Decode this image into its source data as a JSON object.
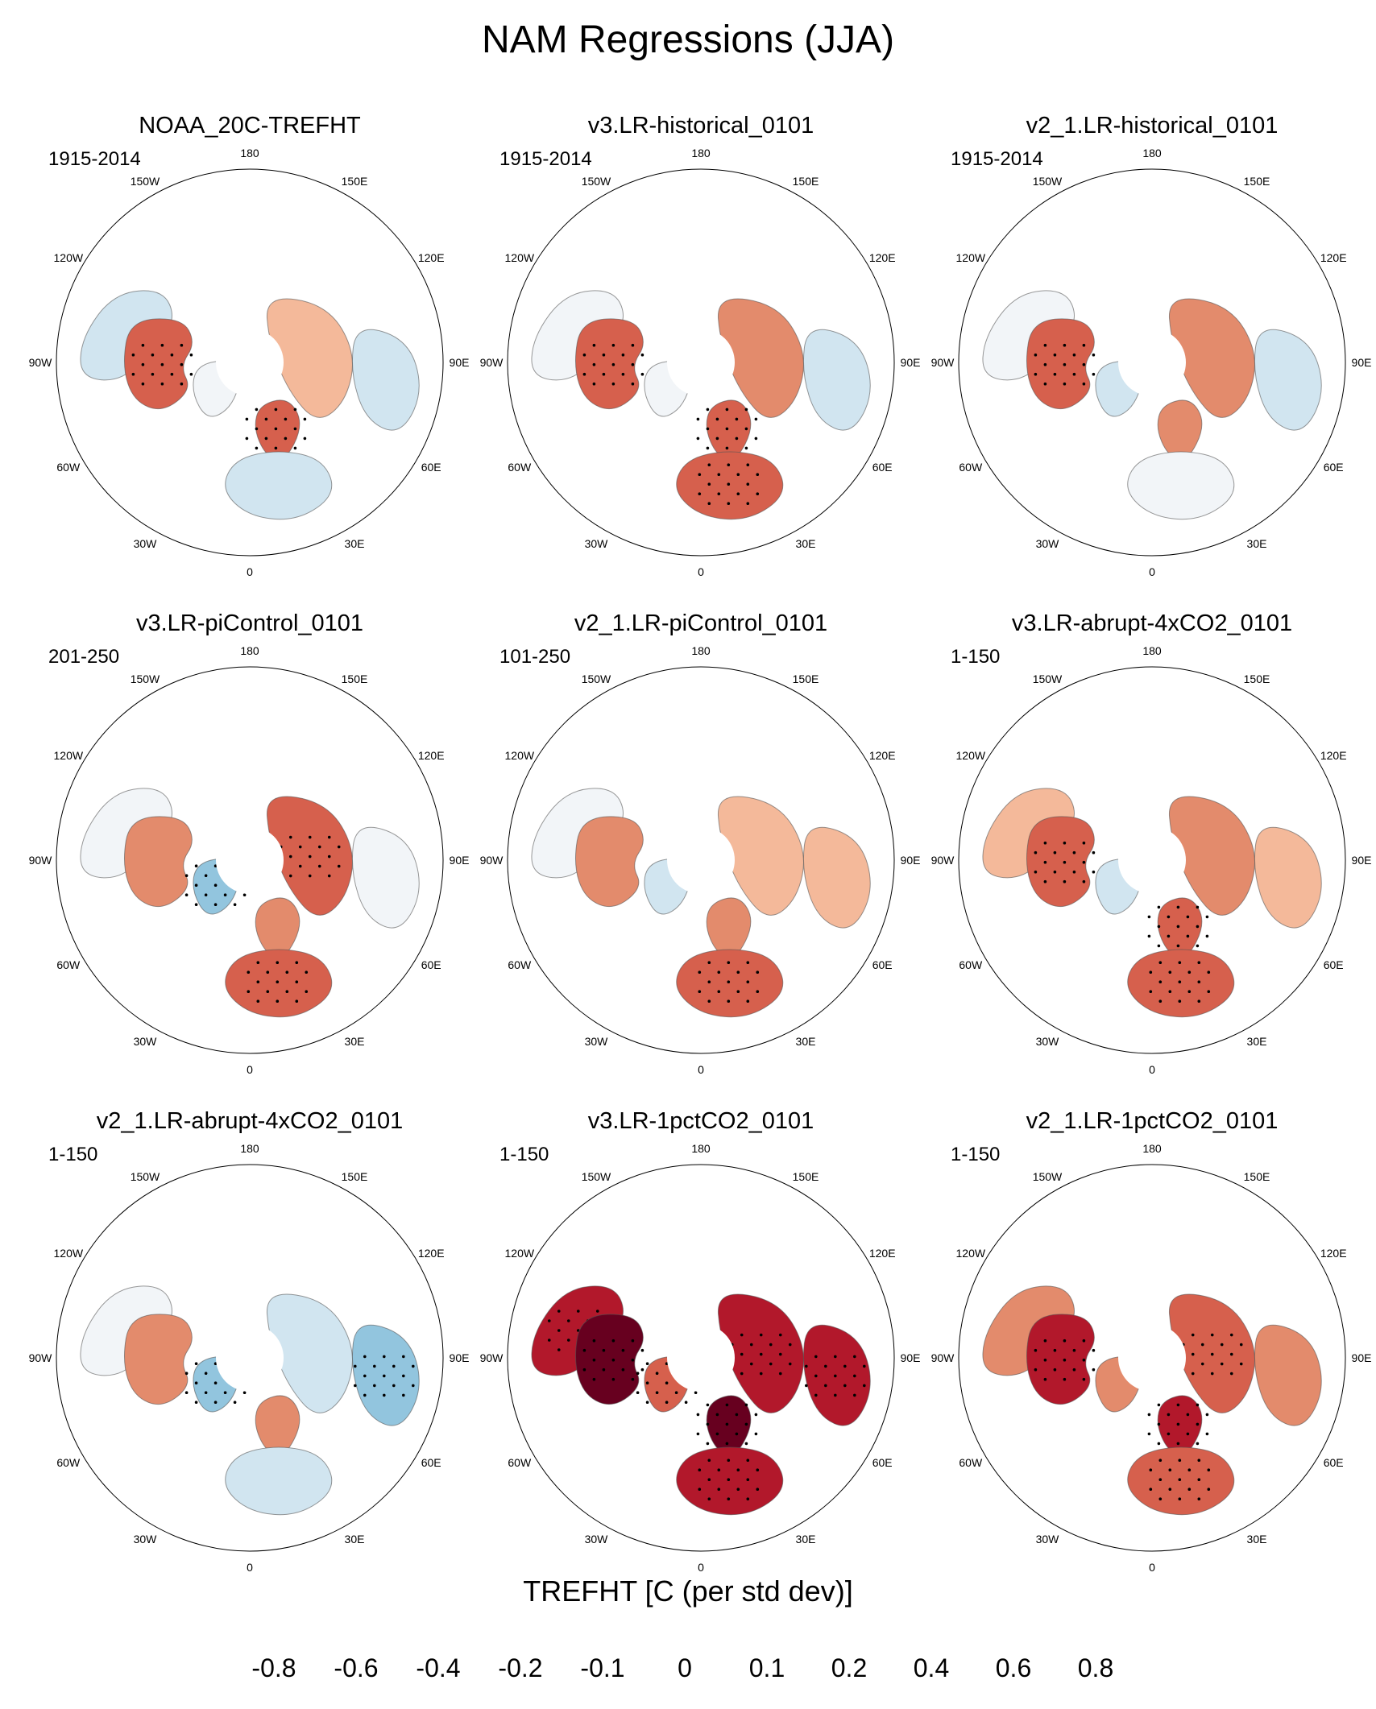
{
  "title": "NAM Regressions (JJA)",
  "colorbar": {
    "label": "TREFHT [C (per std dev)]",
    "ticks": [
      "-0.8",
      "-0.6",
      "-0.4",
      "-0.2",
      "-0.1",
      "0",
      "0.1",
      "0.2",
      "0.4",
      "0.6",
      "0.8"
    ],
    "colors": [
      "#053061",
      "#2166ac",
      "#4393c3",
      "#92c5de",
      "#d1e5f0",
      "#f2f5f8",
      "#fde0d4",
      "#f4b99a",
      "#e38b6c",
      "#d6604d",
      "#b2182b",
      "#67001f"
    ]
  },
  "longitude_labels": [
    "180",
    "150E",
    "120E",
    "90E",
    "60E",
    "30E",
    "0",
    "30W",
    "60W",
    "90W",
    "120W",
    "150W"
  ],
  "chart_data": {
    "type": "heatmap",
    "projection": "north polar stereographic",
    "variable": "TREFHT",
    "units": "C (per std dev)",
    "season": "JJA",
    "levels": [
      -0.8,
      -0.6,
      -0.4,
      -0.2,
      -0.1,
      0,
      0.1,
      0.2,
      0.4,
      0.6,
      0.8
    ],
    "panels": [
      {
        "name": "NOAA_20C-TREFHT",
        "period": "1915-2014",
        "regions": {
          "alaska": -0.2,
          "canada": 0.4,
          "greenland": -0.1,
          "scandinavia": 0.4,
          "europe": -0.2,
          "siberia": 0.1,
          "east_asia": -0.2
        }
      },
      {
        "name": "v3.LR-historical_0101",
        "period": "1915-2014",
        "regions": {
          "alaska": -0.1,
          "canada": 0.4,
          "greenland": -0.1,
          "scandinavia": 0.4,
          "europe": 0.4,
          "siberia": 0.2,
          "east_asia": -0.2
        }
      },
      {
        "name": "v2_1.LR-historical_0101",
        "period": "1915-2014",
        "regions": {
          "alaska": -0.1,
          "canada": 0.4,
          "greenland": -0.2,
          "scandinavia": 0.2,
          "europe": -0.1,
          "siberia": 0.2,
          "east_asia": -0.2
        }
      },
      {
        "name": "v3.LR-piControl_0101",
        "period": "201-250",
        "regions": {
          "alaska": -0.1,
          "canada": 0.2,
          "greenland": -0.4,
          "scandinavia": 0.2,
          "europe": 0.4,
          "siberia": 0.4,
          "east_asia": -0.1
        }
      },
      {
        "name": "v2_1.LR-piControl_0101",
        "period": "101-250",
        "regions": {
          "alaska": -0.1,
          "canada": 0.2,
          "greenland": -0.2,
          "scandinavia": 0.2,
          "europe": 0.4,
          "siberia": 0.1,
          "east_asia": 0.1
        }
      },
      {
        "name": "v3.LR-abrupt-4xCO2_0101",
        "period": "1-150",
        "regions": {
          "alaska": 0.1,
          "canada": 0.4,
          "greenland": -0.2,
          "scandinavia": 0.4,
          "europe": 0.4,
          "siberia": 0.2,
          "east_asia": 0.1
        }
      },
      {
        "name": "v2_1.LR-abrupt-4xCO2_0101",
        "period": "1-150",
        "regions": {
          "alaska": -0.1,
          "canada": 0.2,
          "greenland": -0.4,
          "scandinavia": 0.2,
          "europe": -0.2,
          "siberia": -0.2,
          "east_asia": -0.4
        }
      },
      {
        "name": "v3.LR-1pctCO2_0101",
        "period": "1-150",
        "regions": {
          "alaska": 0.6,
          "canada": 0.8,
          "greenland": 0.4,
          "scandinavia": 0.8,
          "europe": 0.6,
          "siberia": 0.6,
          "east_asia": 0.6
        }
      },
      {
        "name": "v2_1.LR-1pctCO2_0101",
        "period": "1-150",
        "regions": {
          "alaska": 0.2,
          "canada": 0.6,
          "greenland": 0.2,
          "scandinavia": 0.6,
          "europe": 0.4,
          "siberia": 0.4,
          "east_asia": 0.2
        }
      }
    ]
  }
}
